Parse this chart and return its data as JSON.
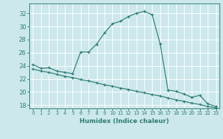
{
  "title": "",
  "xlabel": "Humidex (Indice chaleur)",
  "ylabel": "",
  "xlim": [
    -0.5,
    23.5
  ],
  "ylim": [
    17.5,
    33.5
  ],
  "xticks": [
    0,
    1,
    2,
    3,
    4,
    5,
    6,
    7,
    8,
    9,
    10,
    11,
    12,
    13,
    14,
    15,
    16,
    17,
    18,
    19,
    20,
    21,
    22,
    23
  ],
  "yticks": [
    18,
    20,
    22,
    24,
    26,
    28,
    30,
    32
  ],
  "background_color": "#cce8ec",
  "grid_color": "#ffffff",
  "line_color": "#2e7d72",
  "curve1_x": [
    0,
    1,
    2,
    3,
    4,
    5,
    6,
    7,
    8,
    9,
    10,
    11,
    12,
    13,
    14,
    15,
    16,
    17,
    18,
    19,
    20,
    21,
    22,
    23
  ],
  "curve1_y": [
    24.2,
    23.6,
    23.7,
    23.2,
    23.0,
    22.8,
    26.1,
    26.1,
    27.3,
    29.0,
    30.4,
    30.8,
    31.5,
    32.0,
    32.3,
    31.8,
    27.4,
    20.3,
    20.1,
    19.7,
    19.2,
    19.5,
    18.2,
    17.8
  ],
  "curve2_x": [
    0,
    1,
    2,
    3,
    4,
    5,
    6,
    7,
    8,
    9,
    10,
    11,
    12,
    13,
    14,
    15,
    16,
    17,
    18,
    19,
    20,
    21,
    22,
    23
  ],
  "curve2_y": [
    23.5,
    23.2,
    23.0,
    22.7,
    22.4,
    22.2,
    21.9,
    21.7,
    21.4,
    21.1,
    20.9,
    20.6,
    20.4,
    20.1,
    19.9,
    19.6,
    19.4,
    19.1,
    18.8,
    18.6,
    18.3,
    18.1,
    17.8,
    17.6
  ]
}
